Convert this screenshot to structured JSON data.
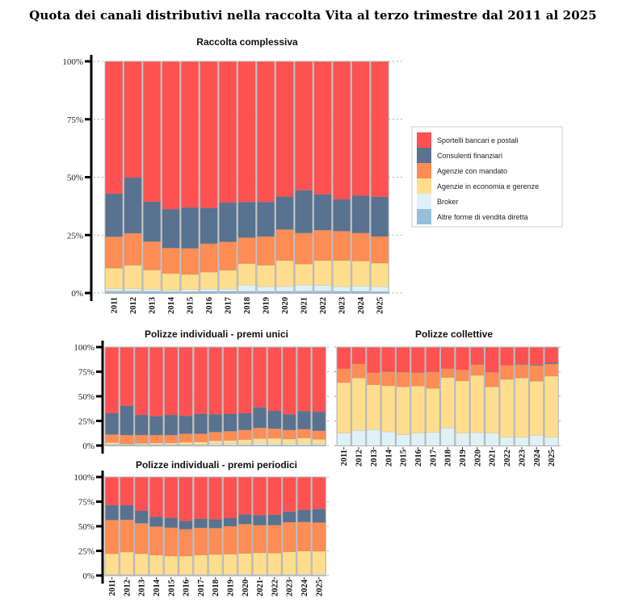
{
  "title": "Quota dei canali distributivi nella raccolta Vita al terzo trimestre dal 2011 al 2025",
  "colors": {
    "Sportelli bancari e postali": "#FE5152",
    "Consulenti finanziari": "#58728F",
    "Agenzie con mandato": "#FE8C55",
    "Agenzie in economia e gerenze": "#FEDE8E",
    "Broker": "#DFF1F8",
    "Altre forme di vendita diretta": "#95BFDC"
  },
  "legend": {
    "placement": "right",
    "entries": [
      "Sportelli bancari e postali",
      "Consulenti finanziari",
      "Agenzie con mandato",
      "Agenzie in economia e gerenze",
      "Broker",
      "Altre forme di vendita diretta"
    ]
  },
  "chart_data": [
    {
      "id": "raccolta-complessiva",
      "type": "bar",
      "stacked": true,
      "title": "Raccolta complessiva",
      "xlabel": "",
      "ylabel": "",
      "ylim": [
        0,
        100
      ],
      "yticks": [
        "0%",
        "25%",
        "50%",
        "75%",
        "100%"
      ],
      "grid": true,
      "show_xlabels": true,
      "categories": [
        "2011",
        "2012",
        "2013",
        "2014",
        "2015",
        "2016",
        "2017",
        "2018",
        "2019",
        "2020",
        "2021",
        "2022",
        "2023",
        "2024",
        "2025"
      ],
      "series": [
        {
          "name": "Altre forme di vendita diretta",
          "values": [
            0.8,
            0.8,
            0.7,
            0.6,
            0.6,
            0.7,
            0.7,
            0.7,
            0.7,
            0.7,
            0.8,
            0.8,
            0.7,
            0.7,
            0.6
          ]
        },
        {
          "name": "Broker",
          "values": [
            1.0,
            1.0,
            0.9,
            0.6,
            0.9,
            1.0,
            1.0,
            2.7,
            2.0,
            2.1,
            2.6,
            2.5,
            2.0,
            2.3,
            2.1
          ]
        },
        {
          "name": "Agenzie in economia e gerenze",
          "values": [
            8.9,
            10.2,
            8.3,
            7.2,
            6.5,
            7.3,
            8.1,
            9.3,
            9.3,
            11.2,
            9.1,
            10.7,
            11.3,
            10.8,
            10.2
          ]
        },
        {
          "name": "Agenzie con mandato",
          "values": [
            13.6,
            13.8,
            12.3,
            11.0,
            11.3,
            12.3,
            12.3,
            11.2,
            12.4,
            13.4,
            13.4,
            13.1,
            12.7,
            12.1,
            11.5
          ]
        },
        {
          "name": "Consulenti finanziari",
          "values": [
            18.6,
            24.0,
            17.2,
            16.8,
            17.6,
            15.4,
            16.9,
            15.4,
            14.9,
            14.2,
            18.4,
            15.5,
            13.7,
            16.1,
            17.1
          ]
        },
        {
          "name": "Sportelli bancari e postali",
          "values": [
            57.1,
            50.2,
            60.6,
            63.8,
            63.1,
            63.3,
            61.0,
            60.7,
            60.7,
            58.4,
            55.7,
            57.4,
            59.6,
            58.0,
            58.5
          ]
        }
      ]
    },
    {
      "id": "premi-unici",
      "type": "bar",
      "stacked": true,
      "title": "Polizze individuali - premi unici",
      "xlabel": "",
      "ylabel": "",
      "ylim": [
        0,
        100
      ],
      "yticks": [
        "0%",
        "25%",
        "50%",
        "75%",
        "100%"
      ],
      "grid": true,
      "show_xlabels": false,
      "categories": [
        "2011",
        "2012",
        "2013",
        "2014",
        "2015",
        "2016",
        "2017",
        "2018",
        "2019",
        "2020",
        "2021",
        "2022",
        "2023",
        "2024",
        "2025"
      ],
      "series": [
        {
          "name": "Altre forme di vendita diretta",
          "values": [
            0.5,
            0.5,
            0.4,
            0.4,
            0.4,
            0.4,
            0.4,
            0.4,
            0.4,
            0.4,
            0.5,
            0.5,
            0.4,
            0.4,
            0.4
          ]
        },
        {
          "name": "Broker",
          "values": [
            0.7,
            0.5,
            0.6,
            0.6,
            0.6,
            0.6,
            0.6,
            1.4,
            1.4,
            1.1,
            2.0,
            1.7,
            1.6,
            1.8,
            1.2
          ]
        },
        {
          "name": "Agenzie in economia e gerenze",
          "values": [
            1.8,
            0.6,
            1.2,
            1.7,
            1.7,
            2.3,
            2.6,
            3.1,
            3.4,
            4.5,
            4.6,
            5.2,
            4.6,
            5.5,
            4.7
          ]
        },
        {
          "name": "Agenzie con mandato",
          "values": [
            8.2,
            9.1,
            8.5,
            8.0,
            8.0,
            8.7,
            8.4,
            8.8,
            9.3,
            9.8,
            10.9,
            9.8,
            9.2,
            9.0,
            8.7
          ]
        },
        {
          "name": "Consulenti finanziari",
          "values": [
            21.6,
            29.7,
            20.4,
            19.1,
            20.4,
            18.1,
            20.2,
            18.0,
            17.5,
            17.0,
            20.8,
            18.0,
            15.9,
            18.3,
            19.2
          ]
        },
        {
          "name": "Sportelli bancari e postali",
          "values": [
            67.2,
            59.6,
            68.9,
            70.2,
            68.9,
            69.9,
            67.8,
            68.3,
            68.0,
            67.2,
            61.2,
            64.8,
            68.3,
            65.0,
            65.8
          ]
        }
      ]
    },
    {
      "id": "collettive",
      "type": "bar",
      "stacked": true,
      "title": "Polizze collettive",
      "xlabel": "",
      "ylabel": "",
      "ylim": [
        0,
        100
      ],
      "yticks": [],
      "grid": true,
      "show_xlabels": true,
      "categories": [
        "2011",
        "2012",
        "2013",
        "2014",
        "2015",
        "2016",
        "2017",
        "2018",
        "2019",
        "2020",
        "2021",
        "2022",
        "2023",
        "2024",
        "2025"
      ],
      "series": [
        {
          "name": "Altre forme di vendita diretta",
          "values": [
            0,
            0,
            0,
            0,
            0,
            0,
            0,
            0,
            0,
            0,
            0,
            0,
            0,
            0,
            0
          ]
        },
        {
          "name": "Broker",
          "values": [
            12.6,
            15.3,
            16.1,
            13.9,
            10.9,
            12.6,
            13.4,
            17.5,
            12.6,
            13.1,
            12.6,
            8.5,
            8.5,
            10.4,
            8.5
          ]
        },
        {
          "name": "Agenzie in economia e gerenze",
          "values": [
            51.3,
            53.3,
            45.6,
            46.8,
            48.7,
            47.8,
            44.6,
            51.6,
            53.0,
            58.2,
            47.0,
            58.7,
            60.1,
            54.9,
            62.0
          ]
        },
        {
          "name": "Agenzie con mandato",
          "values": [
            14.2,
            14.4,
            12.3,
            14.4,
            15.0,
            13.6,
            17.1,
            9.0,
            11.4,
            10.9,
            15.0,
            14.2,
            13.7,
            16.1,
            12.4
          ]
        },
        {
          "name": "Consulenti finanziari",
          "values": [
            0,
            0,
            0,
            0.3,
            0.3,
            0.3,
            0.3,
            0,
            0,
            0,
            0.3,
            0,
            0.7,
            0.8,
            1.3
          ]
        },
        {
          "name": "Sportelli bancari e postali",
          "values": [
            21.9,
            17.0,
            26.0,
            24.6,
            25.1,
            25.7,
            24.6,
            21.9,
            23.0,
            17.8,
            25.1,
            18.6,
            17.0,
            17.8,
            15.8
          ]
        }
      ]
    },
    {
      "id": "premi-periodici",
      "type": "bar",
      "stacked": true,
      "title": "Polizze individuali - premi periodici",
      "xlabel": "",
      "ylabel": "",
      "ylim": [
        0,
        100
      ],
      "yticks": [
        "0%",
        "25%",
        "50%",
        "75%",
        "100%"
      ],
      "grid": true,
      "show_xlabels": true,
      "categories": [
        "2011",
        "2012",
        "2013",
        "2014",
        "2015",
        "2016",
        "2017",
        "2018",
        "2019",
        "2020",
        "2021",
        "2022",
        "2023",
        "2024",
        "2025"
      ],
      "series": [
        {
          "name": "Altre forme di vendita diretta",
          "values": [
            0.3,
            0.3,
            0.3,
            0.3,
            0.3,
            0.3,
            0.3,
            0.3,
            0.3,
            0.3,
            0.3,
            0.3,
            0.3,
            0.3,
            0.3
          ]
        },
        {
          "name": "Broker",
          "values": [
            0.7,
            0.7,
            0.7,
            0.7,
            0.7,
            0.7,
            0.7,
            0.8,
            0.9,
            0.9,
            0.9,
            0.9,
            0.9,
            1.0,
            1.2
          ]
        },
        {
          "name": "Agenzie in economia e gerenze",
          "values": [
            21.1,
            22.8,
            21.1,
            19.7,
            18.7,
            18.7,
            19.7,
            20.2,
            20.4,
            21.2,
            21.8,
            21.5,
            22.8,
            23.5,
            23.1
          ]
        },
        {
          "name": "Agenzie con mandato",
          "values": [
            34.2,
            32.8,
            30.9,
            29.0,
            28.9,
            27.3,
            27.7,
            26.8,
            28.4,
            29.8,
            28.1,
            28.4,
            30.1,
            29.6,
            29.2
          ]
        },
        {
          "name": "Consulenti finanziari",
          "values": [
            15.0,
            14.7,
            12.6,
            9.9,
            9.6,
            8.5,
            9.2,
            9.0,
            8.2,
            9.8,
            10.1,
            10.6,
            10.9,
            12.2,
            13.7
          ]
        },
        {
          "name": "Sportelli bancari e postali",
          "values": [
            28.7,
            28.7,
            34.4,
            40.4,
            41.8,
            44.5,
            42.4,
            42.9,
            41.8,
            38.0,
            38.8,
            38.3,
            35.0,
            33.4,
            32.5
          ]
        }
      ]
    }
  ]
}
